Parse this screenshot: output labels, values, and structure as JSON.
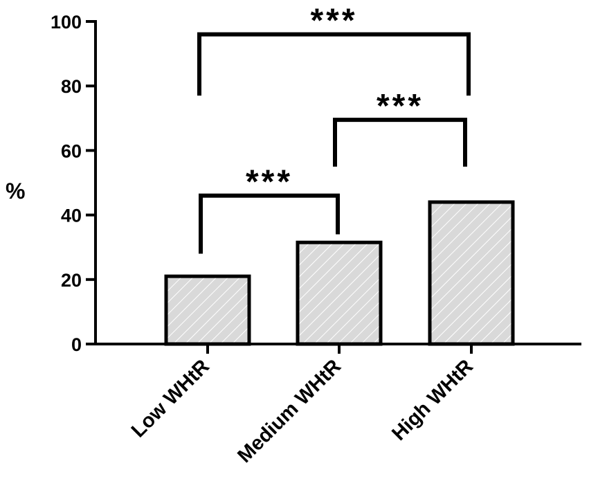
{
  "chart_data": {
    "type": "bar",
    "ylabel": "%",
    "xlabel": "",
    "ylim": [
      0,
      100
    ],
    "yticks": [
      0,
      20,
      40,
      60,
      80,
      100
    ],
    "categories": [
      "Low WHtR",
      "Medium WHtR",
      "High WHtR"
    ],
    "values": [
      21,
      31.5,
      44
    ],
    "bar_fill": "#d9d9d9",
    "bar_hatch": "#ffffff",
    "bar_outline": "#000000",
    "significance": [
      {
        "from": 0,
        "to": 1,
        "label": "***",
        "y": 46,
        "drop_from": 28,
        "drop_to": 34
      },
      {
        "from": 1,
        "to": 2,
        "label": "***",
        "y": 69.5,
        "drop_from": 55,
        "drop_to": 55
      },
      {
        "from": 0,
        "to": 2,
        "label": "***",
        "y": 96,
        "drop_from": 77,
        "drop_to": 77
      }
    ]
  }
}
